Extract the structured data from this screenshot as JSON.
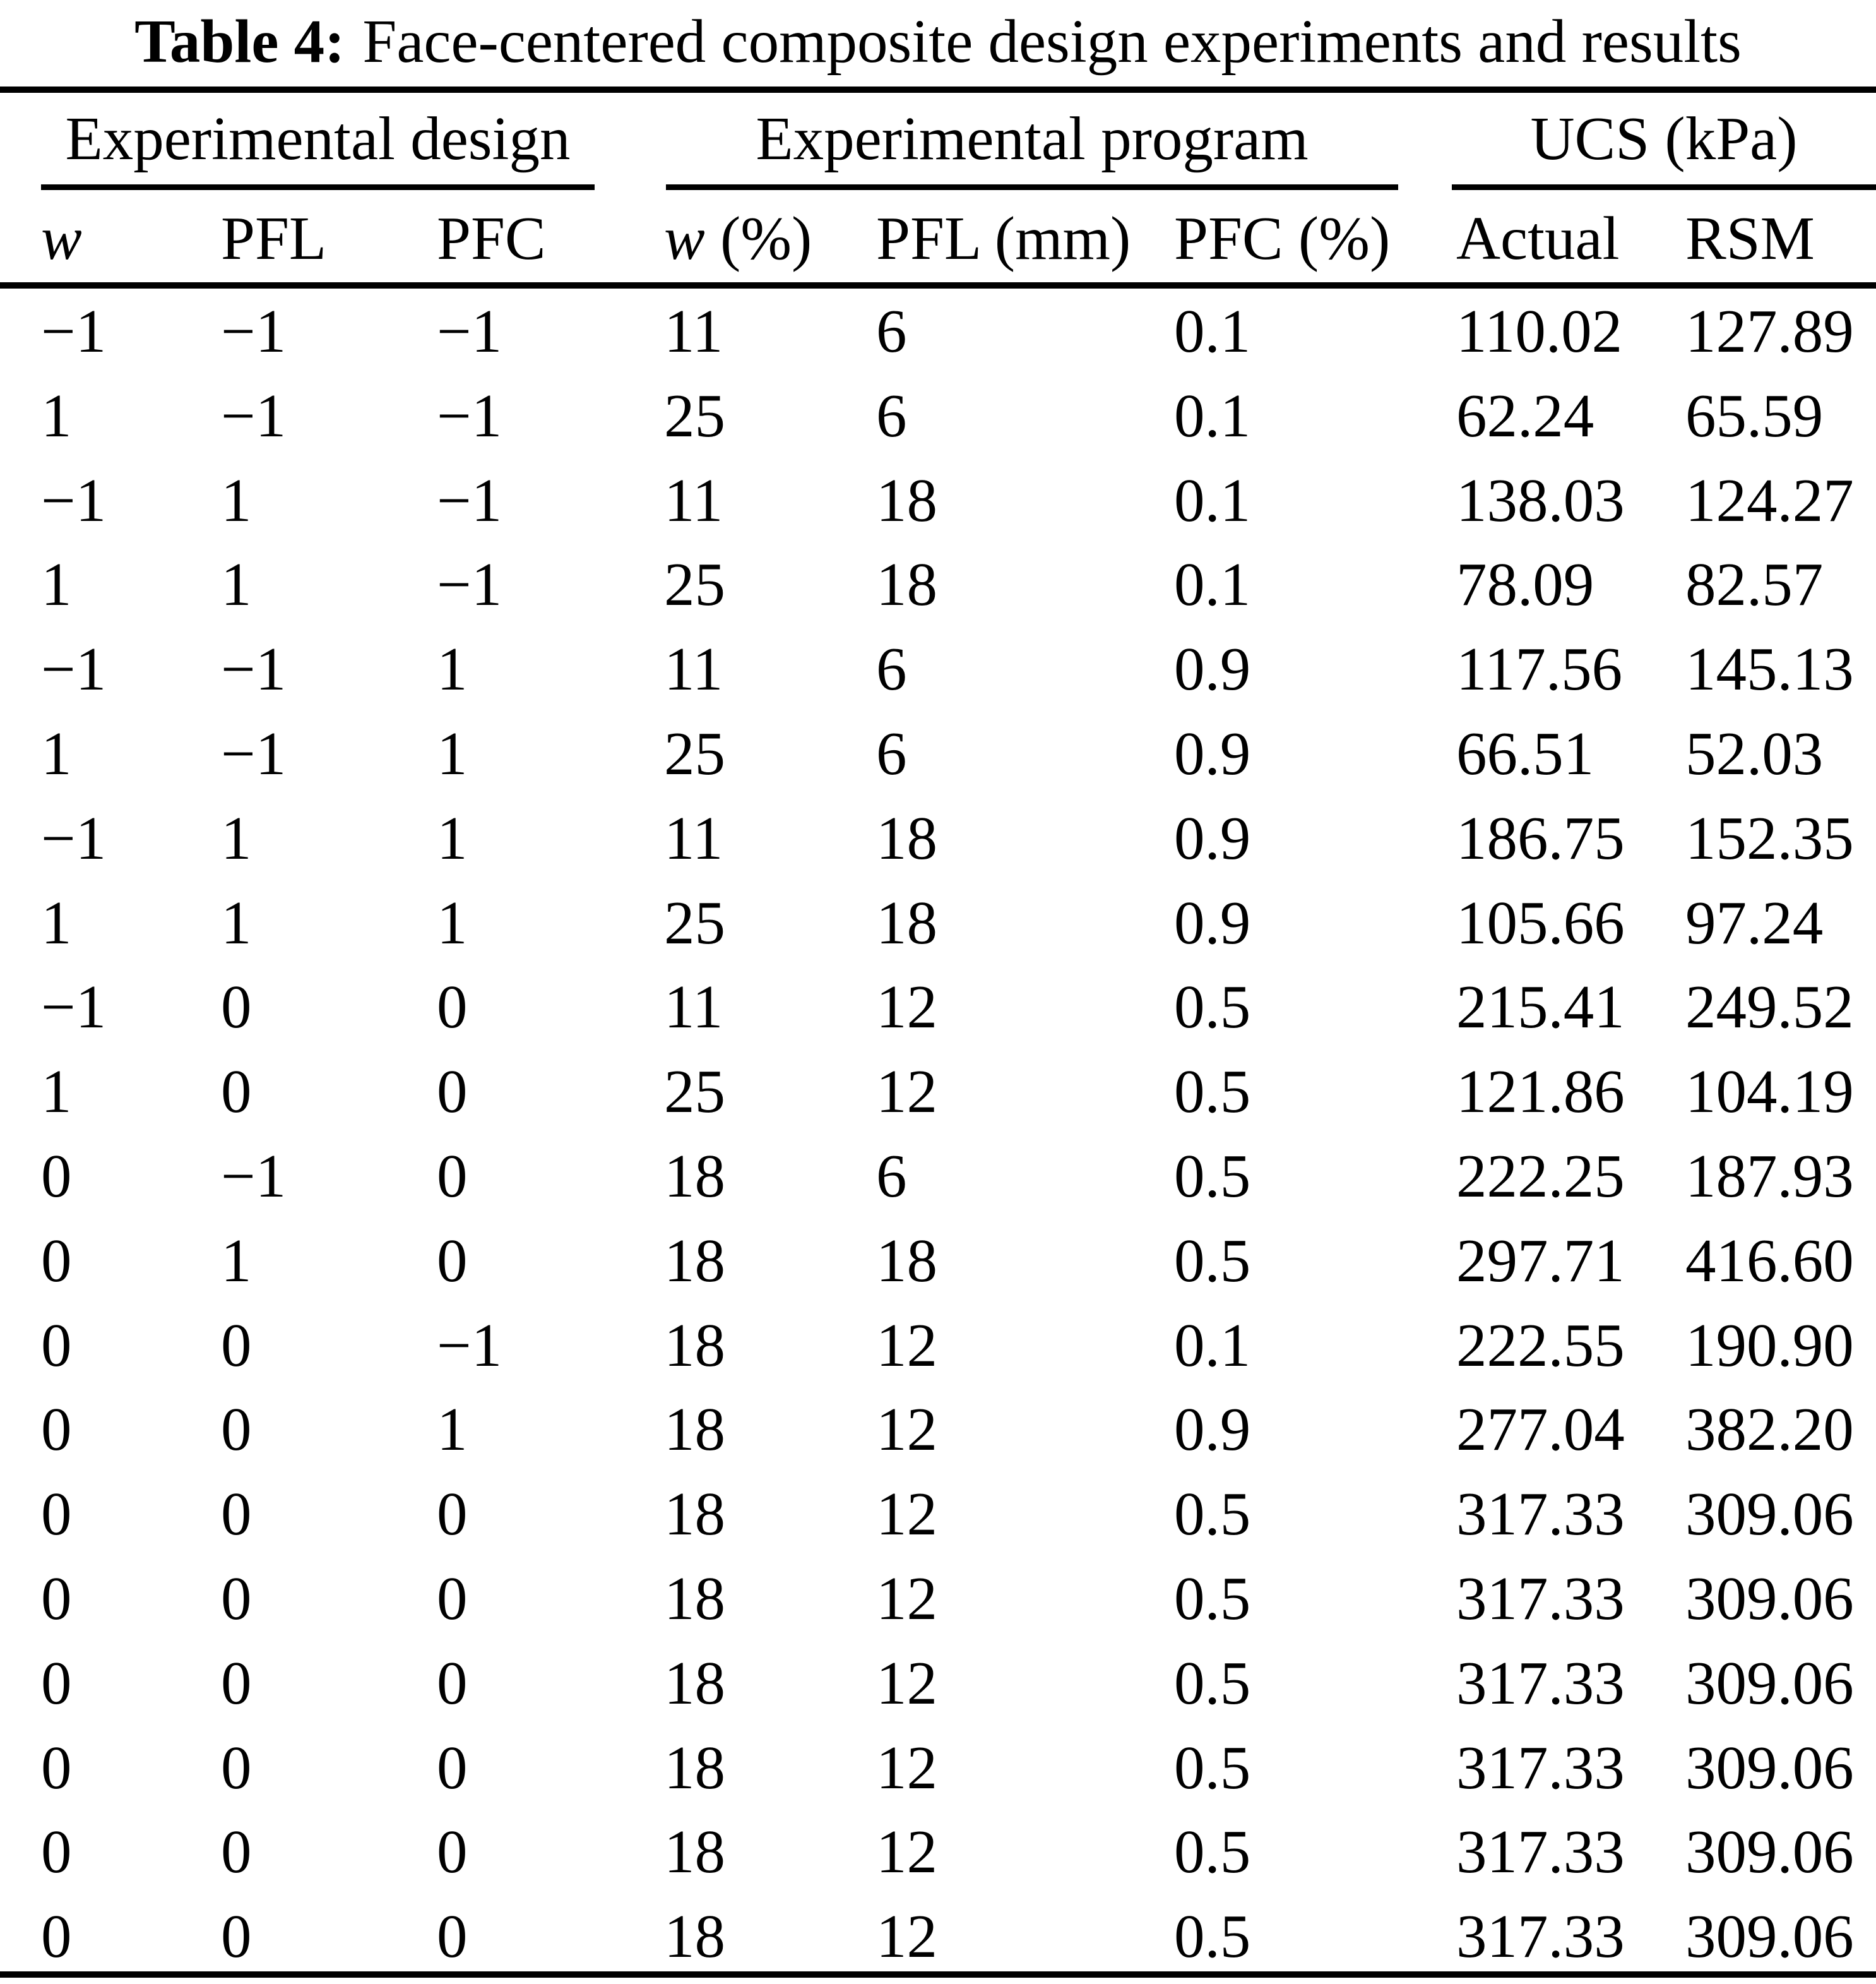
{
  "title": {
    "label": "Table 4:",
    "text": "Face-centered composite design experiments and results"
  },
  "table": {
    "groups": [
      {
        "label": "Experimental design"
      },
      {
        "label": "Experimental program"
      },
      {
        "label": "UCS (kPa)"
      }
    ],
    "columns": [
      {
        "em": "w",
        "rest": ""
      },
      {
        "em": "",
        "rest": "PFL"
      },
      {
        "em": "",
        "rest": "PFC"
      },
      {
        "em": "w",
        "rest": " (%)"
      },
      {
        "em": "",
        "rest": "PFL (mm)"
      },
      {
        "em": "",
        "rest": "PFC (%)"
      },
      {
        "em": "",
        "rest": "Actual"
      },
      {
        "em": "",
        "rest": "RSM"
      }
    ],
    "rows": [
      [
        "−1",
        "−1",
        "−1",
        "11",
        "6",
        "0.1",
        "110.02",
        "127.89"
      ],
      [
        "1",
        "−1",
        "−1",
        "25",
        "6",
        "0.1",
        "62.24",
        "65.59"
      ],
      [
        "−1",
        "1",
        "−1",
        "11",
        "18",
        "0.1",
        "138.03",
        "124.27"
      ],
      [
        "1",
        "1",
        "−1",
        "25",
        "18",
        "0.1",
        "78.09",
        "82.57"
      ],
      [
        "−1",
        "−1",
        "1",
        "11",
        "6",
        "0.9",
        "117.56",
        "145.13"
      ],
      [
        "1",
        "−1",
        "1",
        "25",
        "6",
        "0.9",
        "66.51",
        "52.03"
      ],
      [
        "−1",
        "1",
        "1",
        "11",
        "18",
        "0.9",
        "186.75",
        "152.35"
      ],
      [
        "1",
        "1",
        "1",
        "25",
        "18",
        "0.9",
        "105.66",
        "97.24"
      ],
      [
        "−1",
        "0",
        "0",
        "11",
        "12",
        "0.5",
        "215.41",
        "249.52"
      ],
      [
        "1",
        "0",
        "0",
        "25",
        "12",
        "0.5",
        "121.86",
        "104.19"
      ],
      [
        "0",
        "−1",
        "0",
        "18",
        "6",
        "0.5",
        "222.25",
        "187.93"
      ],
      [
        "0",
        "1",
        "0",
        "18",
        "18",
        "0.5",
        "297.71",
        "416.60"
      ],
      [
        "0",
        "0",
        "−1",
        "18",
        "12",
        "0.1",
        "222.55",
        "190.90"
      ],
      [
        "0",
        "0",
        "1",
        "18",
        "12",
        "0.9",
        "277.04",
        "382.20"
      ],
      [
        "0",
        "0",
        "0",
        "18",
        "12",
        "0.5",
        "317.33",
        "309.06"
      ],
      [
        "0",
        "0",
        "0",
        "18",
        "12",
        "0.5",
        "317.33",
        "309.06"
      ],
      [
        "0",
        "0",
        "0",
        "18",
        "12",
        "0.5",
        "317.33",
        "309.06"
      ],
      [
        "0",
        "0",
        "0",
        "18",
        "12",
        "0.5",
        "317.33",
        "309.06"
      ],
      [
        "0",
        "0",
        "0",
        "18",
        "12",
        "0.5",
        "317.33",
        "309.06"
      ],
      [
        "0",
        "0",
        "0",
        "18",
        "12",
        "0.5",
        "317.33",
        "309.06"
      ]
    ]
  },
  "colors": {
    "text": "#000000",
    "background": "#ffffff",
    "rule": "#000000"
  }
}
